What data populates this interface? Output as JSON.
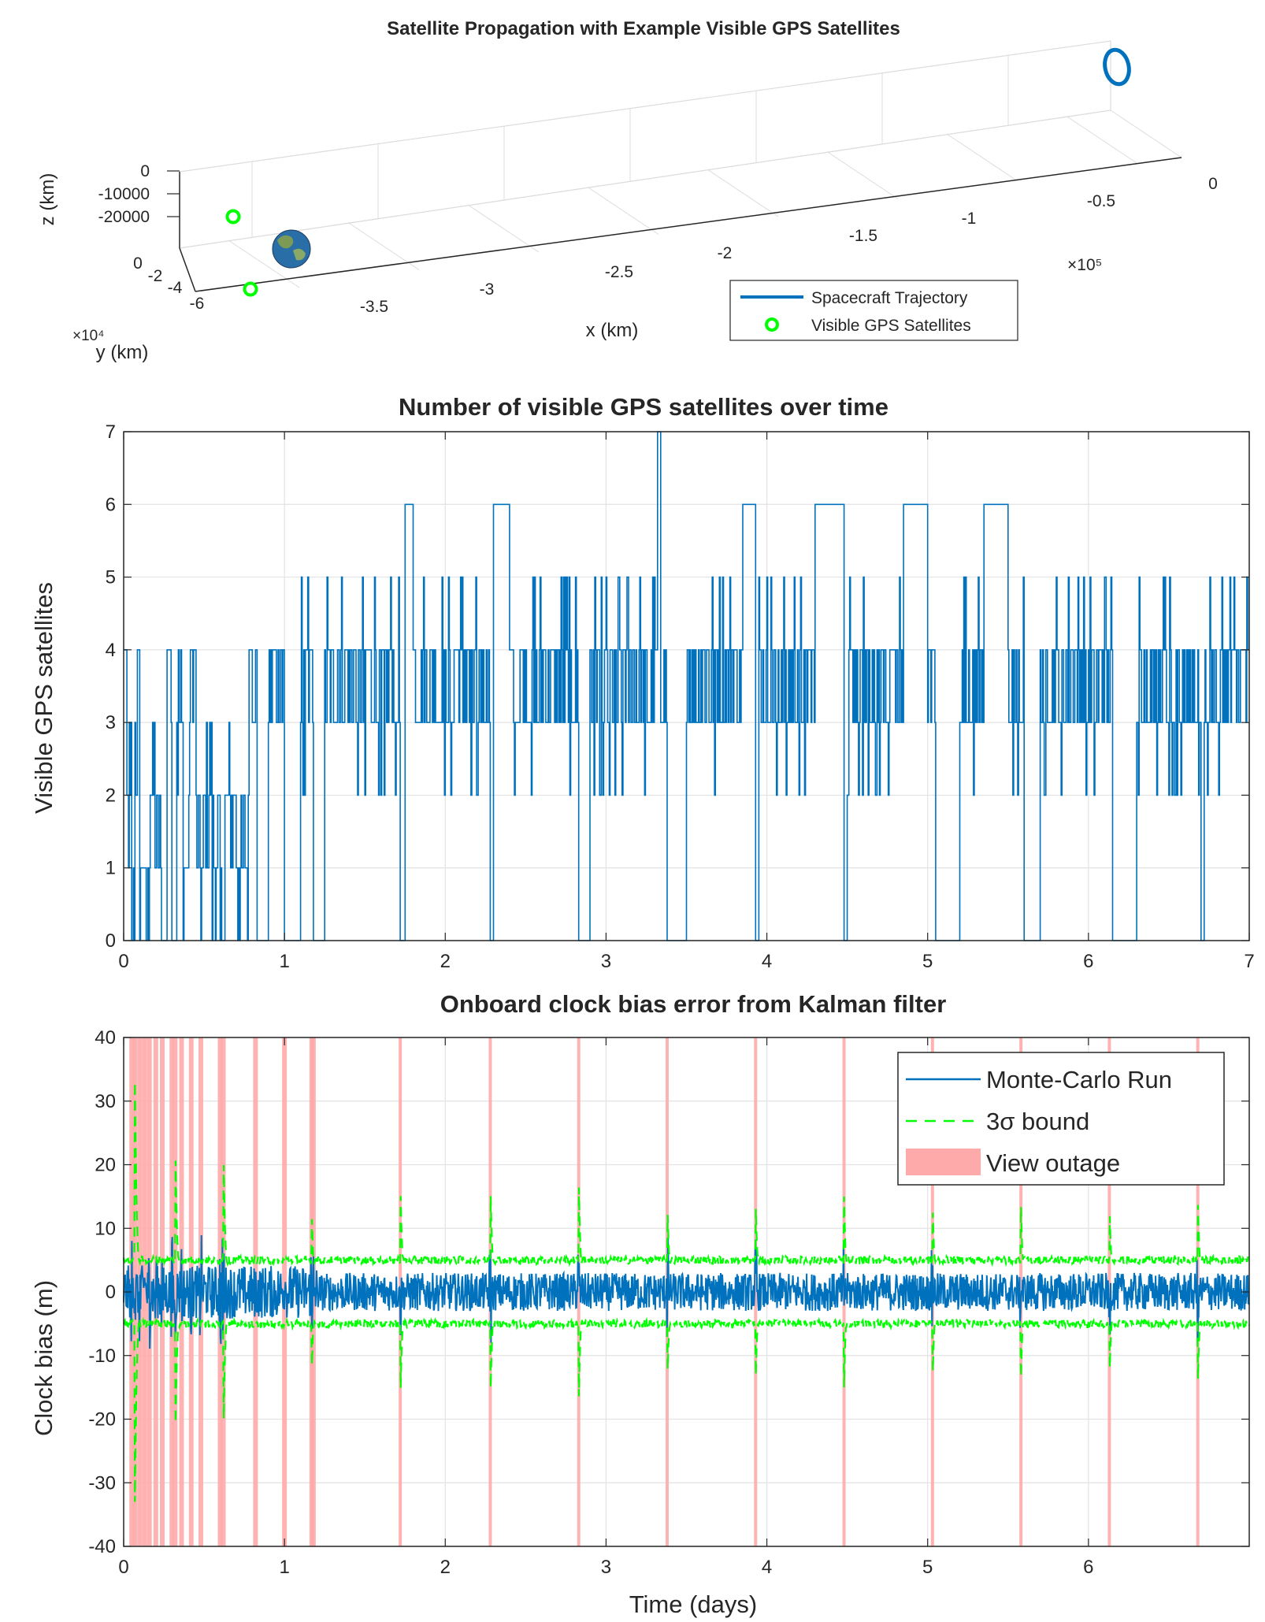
{
  "chart_data": [
    {
      "type": "line3d",
      "title": "Satellite Propagation with Example Visible GPS Satellites",
      "xlabel": "x (km)",
      "ylabel": "y (km)",
      "zlabel": "z (km)",
      "x_ticks": [
        "-3.5",
        "-3",
        "-2.5",
        "-2",
        "-1.5",
        "-1",
        "-0.5",
        "0"
      ],
      "x_exponent": "×10⁵",
      "y_ticks": [
        "0",
        "-2",
        "-4",
        "-6"
      ],
      "y_exponent": "×10⁴",
      "z_ticks": [
        "0",
        "-10000",
        "-20000"
      ],
      "legend": [
        "Spacecraft Trajectory",
        "Visible GPS Satellites"
      ],
      "colors": {
        "trajectory": "#0072BD",
        "gps": "#00FF00",
        "earth": "#2a6ea8"
      }
    },
    {
      "type": "line",
      "title": "Number of visible GPS satellites over time",
      "xlabel": "",
      "ylabel": "Visible GPS satellites",
      "xlim": [
        0,
        7
      ],
      "ylim": [
        0,
        7
      ],
      "x_ticks": [
        0,
        1,
        2,
        3,
        4,
        5,
        6,
        7
      ],
      "y_ticks": [
        0,
        1,
        2,
        3,
        4,
        5,
        6,
        7
      ],
      "grid": true,
      "color": "#0072BD",
      "series": [
        {
          "x": [
            0,
            0.02,
            0.05,
            0.07,
            0.1,
            0.13,
            0.16,
            0.2,
            0.24,
            0.27,
            0.3,
            0.33,
            0.37,
            0.41,
            0.45,
            0.5,
            0.55,
            0.6,
            0.63,
            0.7,
            0.78,
            0.8,
            0.83,
            0.9,
            0.98,
            1.0,
            1.1,
            1.18,
            1.25,
            1.4,
            1.6,
            1.72,
            1.75,
            1.8,
            2.0,
            2.2,
            2.28,
            2.3,
            2.4,
            2.6,
            2.8,
            2.83,
            2.9,
            3.1,
            3.3,
            3.32,
            3.34,
            3.38,
            3.5,
            3.7,
            3.85,
            3.93,
            3.95,
            4.1,
            4.3,
            4.48,
            4.5,
            4.6,
            4.85,
            5.0,
            5.05,
            5.2,
            5.35,
            5.5,
            5.6,
            5.7,
            5.9,
            6.1,
            6.15,
            6.3,
            6.5,
            6.7,
            6.72,
            6.85,
            7.0
          ],
          "y": [
            4,
            2,
            0,
            3,
            1,
            0,
            2,
            1,
            0,
            4,
            0,
            3,
            1,
            4,
            1,
            2,
            1,
            0,
            2,
            1,
            5,
            3,
            0,
            4,
            1,
            0,
            3,
            0,
            4,
            3,
            4,
            0,
            6,
            3,
            5,
            3,
            0,
            6,
            4,
            3,
            5,
            0,
            4,
            3,
            4,
            7,
            3,
            0,
            4,
            3,
            6,
            0,
            4,
            3,
            6,
            0,
            4,
            3,
            6,
            3,
            0,
            4,
            6,
            3,
            0,
            4,
            3,
            5,
            0,
            4,
            3,
            0,
            4,
            3,
            3
          ]
        }
      ]
    },
    {
      "type": "line",
      "title": "Onboard clock bias error from Kalman filter",
      "xlabel": "Time (days)",
      "ylabel": "Clock bias (m)",
      "xlim": [
        0,
        7
      ],
      "ylim": [
        -40,
        40
      ],
      "x_ticks": [
        0,
        1,
        2,
        3,
        4,
        5,
        6
      ],
      "y_ticks": [
        -40,
        -30,
        -20,
        -10,
        0,
        10,
        20,
        30,
        40
      ],
      "grid": true,
      "legend": [
        "Monte-Carlo Run",
        "3σ bound",
        "View outage"
      ],
      "legend_position": "top-right",
      "colors": {
        "run": "#0072BD",
        "bound": "#00FF00",
        "outage": "#FFAAAA"
      },
      "outage_days": [
        0.05,
        0.07,
        0.1,
        0.13,
        0.16,
        0.2,
        0.24,
        0.3,
        0.32,
        0.36,
        0.42,
        0.48,
        0.6,
        0.62,
        0.82,
        1.0,
        1.17,
        1.18,
        1.72,
        2.28,
        2.83,
        3.38,
        3.93,
        4.48,
        5.03,
        5.58,
        6.13,
        6.68
      ],
      "series": [
        {
          "name": "3σ bound",
          "baseline": 5,
          "spike_peaks": [
            33,
            26,
            24,
            12,
            19,
            19,
            18,
            16,
            15,
            15,
            15,
            14,
            15,
            15
          ]
        },
        {
          "name": "Monte-Carlo Run",
          "amplitude": 3
        }
      ]
    }
  ]
}
